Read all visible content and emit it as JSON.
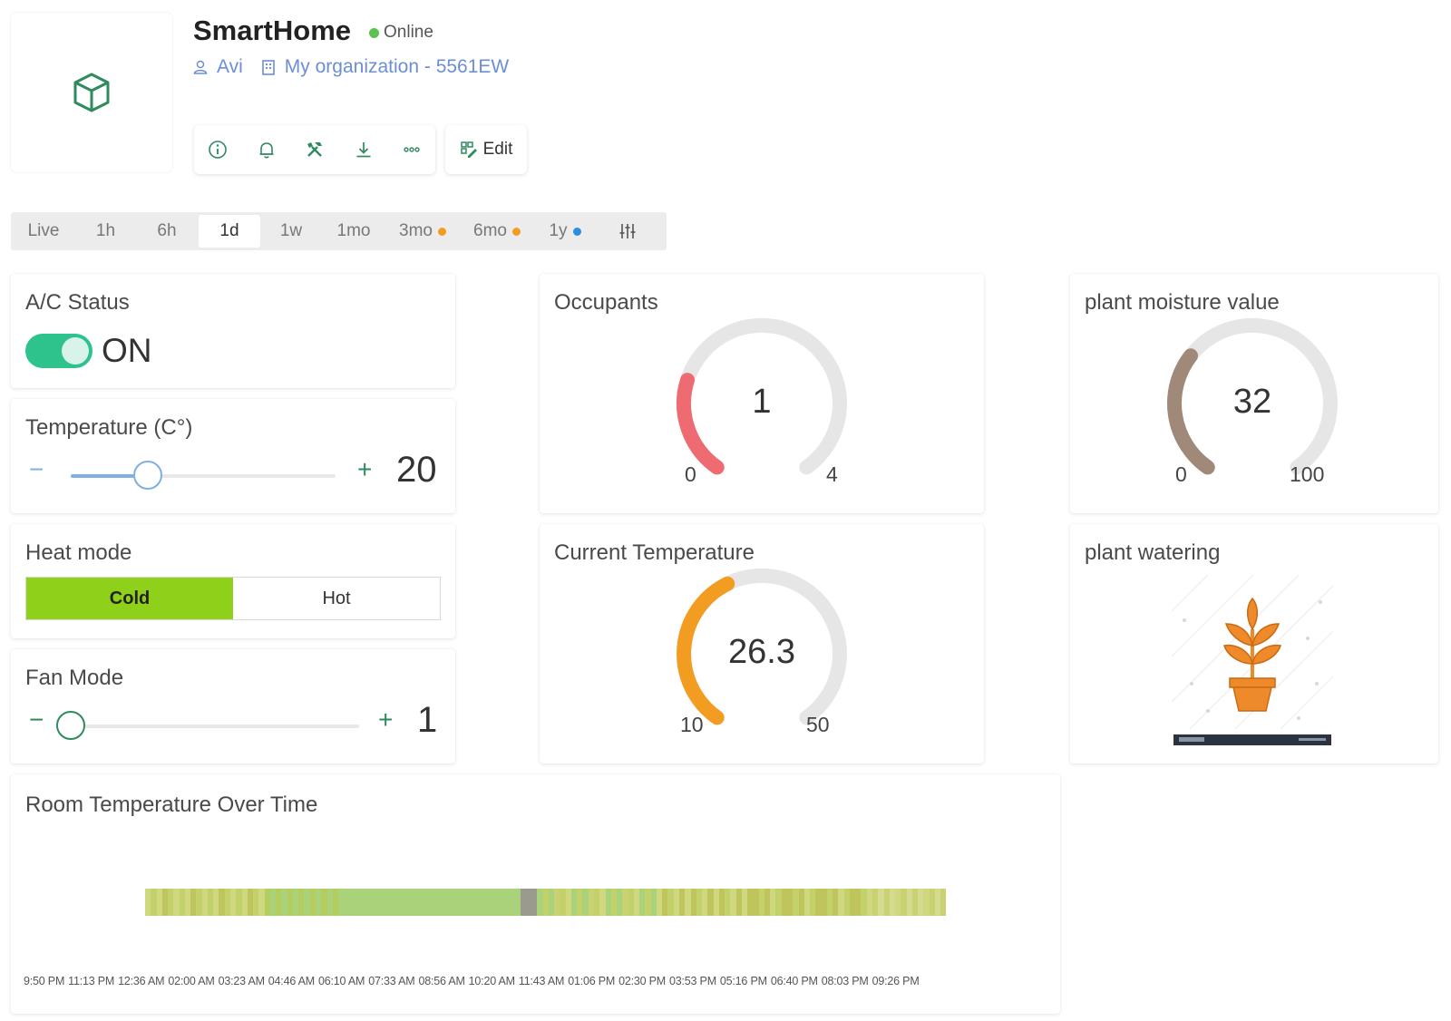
{
  "header": {
    "device_name": "SmartHome",
    "status": "Online",
    "status_color": "#5cc150",
    "user": "Avi",
    "organization": "My organization - 5561EW",
    "device_icon": "cube-icon",
    "toolbar_icons": [
      "info-icon",
      "bell-icon",
      "tools-icon",
      "download-icon",
      "more-icon"
    ],
    "edit_label": "Edit"
  },
  "time_range": {
    "items": [
      {
        "label": "Live"
      },
      {
        "label": "1h"
      },
      {
        "label": "6h"
      },
      {
        "label": "1d",
        "active": true
      },
      {
        "label": "1w"
      },
      {
        "label": "1mo"
      },
      {
        "label": "3mo",
        "dot": "#f39c22"
      },
      {
        "label": "6mo",
        "dot": "#f39c22"
      },
      {
        "label": "1y",
        "dot": "#2f8de0"
      }
    ],
    "settings_icon": "sliders-icon"
  },
  "widgets": {
    "ac_status": {
      "title": "A/C Status",
      "state": "ON",
      "on": true,
      "accent": "#2ec28c"
    },
    "temperature": {
      "title": "Temperature (C°)",
      "value": "20",
      "fraction": 0.29,
      "minus": "−",
      "plus": "+"
    },
    "heat_mode": {
      "title": "Heat mode",
      "options": [
        "Cold",
        "Hot"
      ],
      "selected": "Cold",
      "accent": "#8fd11a"
    },
    "fan_mode": {
      "title": "Fan Mode",
      "value": "1",
      "fraction": 0.0,
      "minus": "−",
      "plus": "+"
    },
    "occupants": {
      "title": "Occupants",
      "value": "1",
      "min": "0",
      "max": "4",
      "fraction": 0.25,
      "color": "#ee6b72"
    },
    "current_temperature": {
      "title": "Current Temperature",
      "value": "26.3",
      "min": "10",
      "max": "50",
      "fraction": 0.41,
      "color": "#f39c22"
    },
    "plant_moisture": {
      "title": "plant moisture value",
      "value": "32",
      "min": "0",
      "max": "100",
      "fraction": 0.32,
      "color": "#a08978"
    },
    "plant_watering": {
      "title": "plant watering",
      "image": "potted-plant-illustration"
    },
    "room_temperature": {
      "title": "Room Temperature Over Time",
      "time_labels": [
        "9:50 PM",
        "11:13 PM",
        "12:36 AM",
        "02:00 AM",
        "03:23 AM",
        "04:46 AM",
        "06:10 AM",
        "07:33 AM",
        "08:56 AM",
        "10:20 AM",
        "11:43 AM",
        "01:06 PM",
        "02:30 PM",
        "03:53 PM",
        "05:16 PM",
        "06:40 PM",
        "08:03 PM",
        "09:26 PM"
      ],
      "palette": [
        "#cfd87f",
        "#c2d16a",
        "#b5cc5e",
        "#a9d27a",
        "#c9d172",
        "#bfc45c",
        "#d4da8e",
        "#9a9a8e"
      ]
    }
  }
}
